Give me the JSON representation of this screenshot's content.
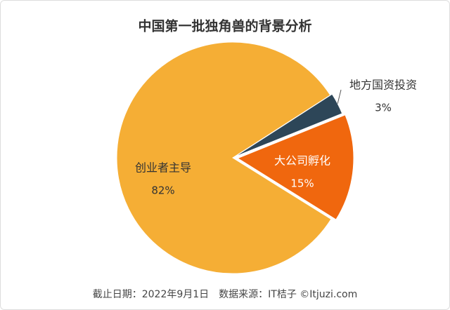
{
  "chart_data": {
    "type": "pie",
    "title": "中国第一批独角兽的背景分析",
    "categories": [
      "创业者主导",
      "地方国资投资",
      "大公司孵化"
    ],
    "values": [
      82,
      3,
      15
    ],
    "value_labels": [
      "82%",
      "3%",
      "15%"
    ],
    "colors": [
      "#f5ae35",
      "#2d4658",
      "#f0670e"
    ],
    "source": "截止日期：2022年9月1日　数据来源：IT桔子 ©Itjuzi.com"
  }
}
